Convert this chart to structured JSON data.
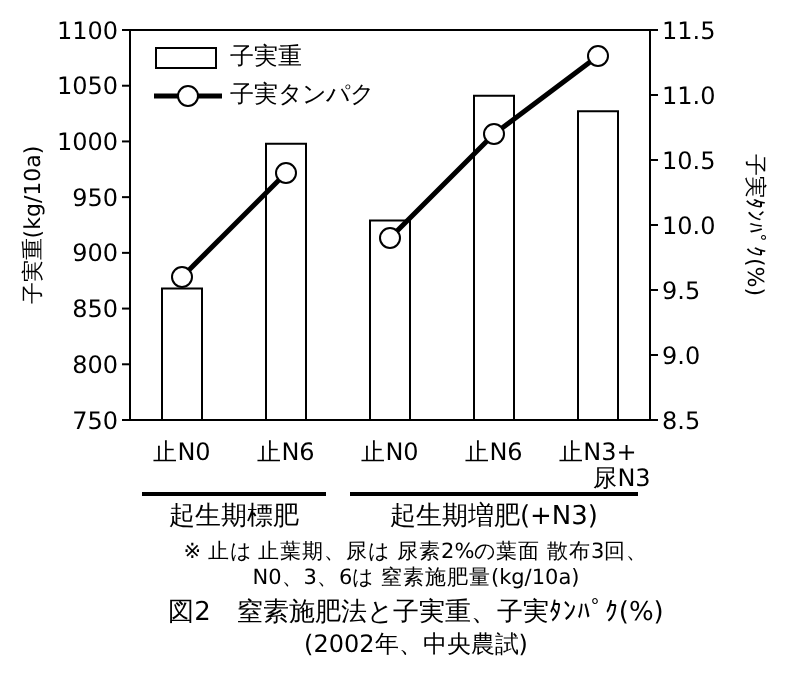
{
  "chart_data": {
    "type": "bar",
    "title": "図2　窒素施肥法と子実重、子実ﾀﾝﾊﾟｸ(%)",
    "subtitle": "(2002年、中央農試)",
    "ylabel": "子実重(kg/10a)",
    "y2label": "子実ﾀﾝﾊﾟｸ(%)",
    "categories": [
      "止N0",
      "止N6",
      "止N0",
      "止N6",
      "止N3+\n尿N3"
    ],
    "series": [
      {
        "name": "子実重",
        "color": "#ffffff",
        "values": [
          868,
          998,
          929,
          1041,
          1027
        ]
      },
      {
        "name": "子実タンパク",
        "type": "line",
        "axis": "y2",
        "color": "#000000",
        "values": [
          9.6,
          10.4,
          null,
          null,
          null
        ]
      },
      {
        "type": "line",
        "axis": "y2",
        "color": "#000000",
        "values": [
          null,
          null,
          9.9,
          10.7,
          11.3
        ]
      }
    ],
    "ylim": [
      750,
      1100
    ],
    "yticks": [
      750,
      800,
      850,
      900,
      950,
      1000,
      1050,
      1100
    ],
    "y2lim": [
      8.5,
      11.5
    ],
    "y2ticks": [
      8.5,
      {
        "value": 9,
        "label": "9.0"
      },
      9.5,
      {
        "value": 10,
        "label": "10.0"
      },
      10.5,
      {
        "value": 11,
        "label": "11.0"
      },
      11.5
    ],
    "annotations": [
      "起生期標肥",
      "起生期増肥(+N3)",
      "※ 止は 止葉期、尿は 尿素2%の葉面 散布3回、\nN0、3、6は 窒素施肥量(kg/10a)"
    ],
    "legend": "top left",
    "marker": "circle",
    "grid": false
  }
}
